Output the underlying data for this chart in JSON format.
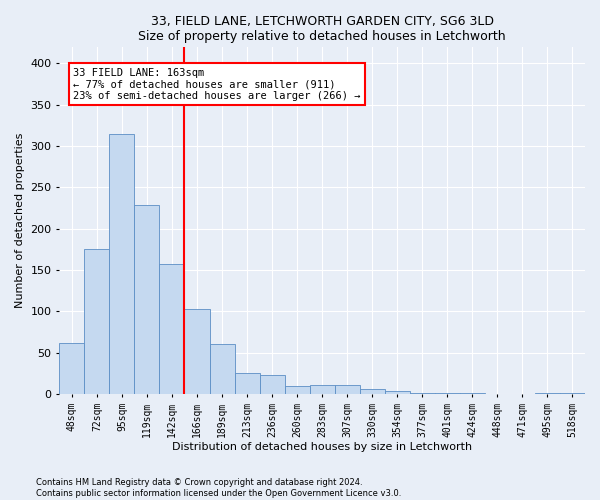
{
  "title1": "33, FIELD LANE, LETCHWORTH GARDEN CITY, SG6 3LD",
  "title2": "Size of property relative to detached houses in Letchworth",
  "xlabel": "Distribution of detached houses by size in Letchworth",
  "ylabel": "Number of detached properties",
  "categories": [
    "48sqm",
    "72sqm",
    "95sqm",
    "119sqm",
    "142sqm",
    "166sqm",
    "189sqm",
    "213sqm",
    "236sqm",
    "260sqm",
    "283sqm",
    "307sqm",
    "330sqm",
    "354sqm",
    "377sqm",
    "401sqm",
    "424sqm",
    "448sqm",
    "471sqm",
    "495sqm",
    "518sqm"
  ],
  "values": [
    62,
    175,
    315,
    229,
    157,
    103,
    61,
    26,
    23,
    10,
    11,
    11,
    6,
    4,
    1,
    1,
    1,
    0,
    0,
    1,
    1
  ],
  "bar_color": "#c5d9f0",
  "bar_edge_color": "#5b8ec5",
  "annotation_text": "33 FIELD LANE: 163sqm\n← 77% of detached houses are smaller (911)\n23% of semi-detached houses are larger (266) →",
  "line_color": "red",
  "vline_x": 4.5,
  "ylim": [
    0,
    420
  ],
  "yticks": [
    0,
    50,
    100,
    150,
    200,
    250,
    300,
    350,
    400
  ],
  "footer1": "Contains HM Land Registry data © Crown copyright and database right 2024.",
  "footer2": "Contains public sector information licensed under the Open Government Licence v3.0.",
  "bg_color": "#e8eef7",
  "grid_color": "white",
  "title_fontsize": 9,
  "axis_label_fontsize": 8,
  "tick_fontsize": 7,
  "annotation_fontsize": 7.5
}
